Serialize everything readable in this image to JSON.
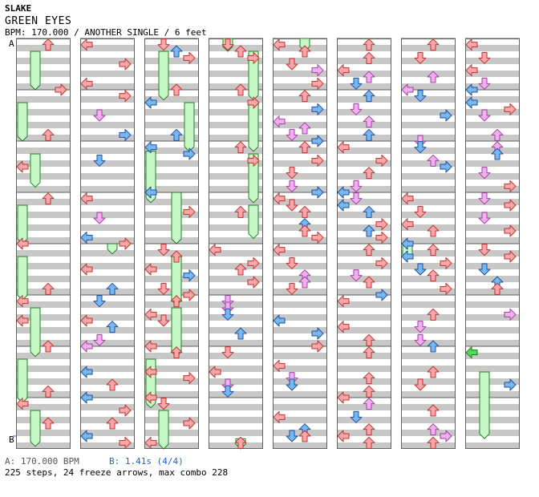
{
  "header": {
    "artist": "SLAKE",
    "title": "GREEN EYES",
    "info": "BPM: 170.000 / ANOTHER SINGLE / 6 feet"
  },
  "markers": {
    "start": "A",
    "end": "B"
  },
  "footer": {
    "a_label": "A: 170.000 BPM",
    "b_label": "B: 1.41s (4/4)",
    "steps": "225 steps, 24 freeze arrows, max combo 228"
  },
  "colors": {
    "quarter": "#f8a8a8",
    "eighth": "#78b8f0",
    "sixteenth": "#f0b0f0",
    "other": "#58d858",
    "freeze": "#c8f8c8"
  },
  "chart": {
    "measures_per_column": 8,
    "beat_lines": 4,
    "lanes": [
      "left",
      "down",
      "up",
      "right"
    ],
    "notes": [
      [
        0,
        0,
        0.12,
        2,
        "q"
      ],
      [
        0,
        0,
        1.0,
        3,
        "q"
      ],
      [
        0,
        0,
        1.88,
        2,
        "q"
      ],
      [
        0,
        0,
        2.5,
        0,
        "q"
      ],
      [
        0,
        0,
        3.12,
        2,
        "q"
      ],
      [
        0,
        0,
        4.0,
        0,
        "q"
      ],
      [
        0,
        0,
        4.88,
        2,
        "q"
      ],
      [
        0,
        0,
        5.12,
        0,
        "q"
      ],
      [
        0,
        0,
        5.5,
        0,
        "q"
      ],
      [
        0,
        0,
        6.0,
        2,
        "q"
      ],
      [
        0,
        0,
        6.88,
        2,
        "q"
      ],
      [
        0,
        0,
        7.12,
        0,
        "q"
      ],
      [
        0,
        0,
        7.5,
        2,
        "q"
      ],
      [
        1,
        0,
        0.12,
        0,
        "q"
      ],
      [
        1,
        0,
        0.5,
        3,
        "q"
      ],
      [
        1,
        0,
        0.88,
        0,
        "q"
      ],
      [
        1,
        0,
        1.12,
        3,
        "q"
      ],
      [
        1,
        0,
        1.5,
        1,
        "s"
      ],
      [
        1,
        0,
        1.88,
        3,
        "e"
      ],
      [
        1,
        0,
        2.38,
        1,
        "e"
      ],
      [
        1,
        0,
        3.12,
        0,
        "q"
      ],
      [
        1,
        0,
        3.5,
        1,
        "s"
      ],
      [
        1,
        0,
        3.88,
        0,
        "e"
      ],
      [
        1,
        0,
        4.0,
        3,
        "q"
      ],
      [
        1,
        0,
        4.5,
        0,
        "q"
      ],
      [
        1,
        0,
        5.5,
        0,
        "q"
      ],
      [
        1,
        0,
        5.88,
        1,
        "s"
      ],
      [
        1,
        0,
        5.12,
        1,
        "e"
      ],
      [
        1,
        0,
        6.0,
        0,
        "s"
      ],
      [
        1,
        0,
        6.5,
        0,
        "e"
      ],
      [
        1,
        0,
        6.75,
        2,
        "q"
      ],
      [
        1,
        0,
        7.0,
        0,
        "e"
      ],
      [
        1,
        0,
        7.25,
        3,
        "q"
      ],
      [
        1,
        0,
        7.5,
        2,
        "q"
      ],
      [
        1,
        0,
        7.75,
        0,
        "e"
      ],
      [
        1,
        0,
        7.88,
        3,
        "q"
      ],
      [
        1,
        0,
        4.88,
        2,
        "e"
      ],
      [
        1,
        0,
        5.62,
        2,
        "e"
      ],
      [
        2,
        0,
        0.12,
        1,
        "q"
      ],
      [
        2,
        0,
        0.25,
        2,
        "e"
      ],
      [
        2,
        0,
        0.38,
        3,
        "q"
      ],
      [
        2,
        0,
        1.0,
        2,
        "q"
      ],
      [
        2,
        0,
        1.25,
        0,
        "e"
      ],
      [
        2,
        0,
        1.88,
        2,
        "e"
      ],
      [
        2,
        0,
        2.12,
        0,
        "e"
      ],
      [
        2,
        0,
        2.25,
        3,
        "e"
      ],
      [
        2,
        0,
        3.0,
        0,
        "e"
      ],
      [
        2,
        0,
        3.38,
        3,
        "q"
      ],
      [
        2,
        0,
        4.12,
        1,
        "q"
      ],
      [
        2,
        0,
        4.25,
        2,
        "q"
      ],
      [
        2,
        0,
        4.5,
        0,
        "q"
      ],
      [
        2,
        0,
        4.62,
        3,
        "e"
      ],
      [
        2,
        0,
        4.88,
        1,
        "q"
      ],
      [
        2,
        0,
        5.0,
        3,
        "q"
      ],
      [
        2,
        0,
        5.12,
        2,
        "q"
      ],
      [
        2,
        0,
        5.38,
        0,
        "q"
      ],
      [
        2,
        0,
        5.5,
        1,
        "q"
      ],
      [
        2,
        0,
        6.0,
        0,
        "q"
      ],
      [
        2,
        0,
        6.12,
        2,
        "q"
      ],
      [
        2,
        0,
        6.5,
        0,
        "q"
      ],
      [
        2,
        0,
        6.62,
        3,
        "q"
      ],
      [
        2,
        0,
        7.0,
        0,
        "q"
      ],
      [
        2,
        0,
        7.12,
        1,
        "q"
      ],
      [
        2,
        0,
        7.5,
        3,
        "q"
      ],
      [
        2,
        0,
        7.88,
        0,
        "q"
      ],
      [
        3,
        0,
        0.12,
        1,
        "q"
      ],
      [
        3,
        0,
        0.25,
        2,
        "q"
      ],
      [
        3,
        0,
        0.38,
        3,
        "q"
      ],
      [
        3,
        0,
        1.0,
        2,
        "q"
      ],
      [
        3,
        0,
        1.25,
        3,
        "q"
      ],
      [
        3,
        0,
        2.12,
        2,
        "q"
      ],
      [
        3,
        0,
        2.38,
        3,
        "q"
      ],
      [
        3,
        0,
        3.38,
        2,
        "q"
      ],
      [
        3,
        0,
        4.12,
        0,
        "q"
      ],
      [
        3,
        0,
        4.38,
        3,
        "q"
      ],
      [
        3,
        0,
        4.5,
        2,
        "q"
      ],
      [
        3,
        0,
        4.75,
        3,
        "q"
      ],
      [
        3,
        0,
        5.12,
        1,
        "s"
      ],
      [
        3,
        0,
        5.25,
        1,
        "s"
      ],
      [
        3,
        0,
        5.38,
        1,
        "e"
      ],
      [
        3,
        0,
        5.75,
        2,
        "e"
      ],
      [
        3,
        0,
        6.12,
        1,
        "q"
      ],
      [
        3,
        0,
        6.5,
        0,
        "q"
      ],
      [
        3,
        0,
        6.75,
        1,
        "s"
      ],
      [
        3,
        0,
        6.88,
        1,
        "e"
      ],
      [
        3,
        0,
        7.88,
        2,
        "q"
      ],
      [
        4,
        0,
        0.12,
        0,
        "q"
      ],
      [
        4,
        0,
        0.25,
        2,
        "q"
      ],
      [
        4,
        0,
        0.5,
        1,
        "q"
      ],
      [
        4,
        0,
        0.62,
        3,
        "s"
      ],
      [
        4,
        0,
        0.88,
        3,
        "q"
      ],
      [
        4,
        0,
        1.12,
        2,
        "q"
      ],
      [
        4,
        0,
        1.38,
        3,
        "e"
      ],
      [
        4,
        0,
        1.62,
        0,
        "s"
      ],
      [
        4,
        0,
        1.75,
        2,
        "s"
      ],
      [
        4,
        0,
        1.88,
        1,
        "s"
      ],
      [
        4,
        0,
        2.0,
        3,
        "e"
      ],
      [
        4,
        0,
        2.12,
        2,
        "q"
      ],
      [
        4,
        0,
        2.38,
        3,
        "q"
      ],
      [
        4,
        0,
        2.62,
        1,
        "q"
      ],
      [
        4,
        0,
        2.88,
        1,
        "s"
      ],
      [
        4,
        0,
        3.0,
        3,
        "e"
      ],
      [
        4,
        0,
        3.12,
        0,
        "q"
      ],
      [
        4,
        0,
        3.25,
        1,
        "q"
      ],
      [
        4,
        0,
        3.38,
        2,
        "q"
      ],
      [
        4,
        0,
        3.62,
        2,
        "e"
      ],
      [
        4,
        0,
        3.75,
        2,
        "q"
      ],
      [
        4,
        0,
        3.88,
        3,
        "q"
      ],
      [
        4,
        0,
        4.12,
        0,
        "q"
      ],
      [
        4,
        0,
        4.38,
        1,
        "q"
      ],
      [
        4,
        0,
        4.62,
        2,
        "s"
      ],
      [
        4,
        0,
        4.75,
        2,
        "s"
      ],
      [
        4,
        0,
        4.88,
        1,
        "q"
      ],
      [
        4,
        0,
        5.5,
        0,
        "e"
      ],
      [
        4,
        0,
        5.75,
        3,
        "e"
      ],
      [
        4,
        0,
        6.0,
        3,
        "q"
      ],
      [
        4,
        0,
        6.38,
        0,
        "q"
      ],
      [
        4,
        0,
        6.62,
        1,
        "s"
      ],
      [
        4,
        0,
        6.75,
        1,
        "e"
      ],
      [
        4,
        0,
        7.38,
        0,
        "q"
      ],
      [
        4,
        0,
        7.75,
        1,
        "e"
      ],
      [
        4,
        0,
        7.62,
        2,
        "e"
      ],
      [
        4,
        0,
        7.75,
        2,
        "q"
      ],
      [
        5,
        0,
        0.12,
        2,
        "q"
      ],
      [
        5,
        0,
        0.38,
        2,
        "q"
      ],
      [
        5,
        0,
        0.62,
        0,
        "q"
      ],
      [
        5,
        0,
        0.75,
        2,
        "s"
      ],
      [
        5,
        0,
        0.88,
        1,
        "e"
      ],
      [
        5,
        0,
        1.12,
        2,
        "e"
      ],
      [
        5,
        0,
        1.38,
        1,
        "s"
      ],
      [
        5,
        0,
        1.62,
        2,
        "s"
      ],
      [
        5,
        0,
        1.88,
        2,
        "e"
      ],
      [
        5,
        0,
        2.12,
        0,
        "q"
      ],
      [
        5,
        0,
        2.38,
        3,
        "q"
      ],
      [
        5,
        0,
        2.62,
        2,
        "q"
      ],
      [
        5,
        0,
        2.88,
        1,
        "s"
      ],
      [
        5,
        0,
        3.0,
        0,
        "e"
      ],
      [
        5,
        0,
        3.12,
        1,
        "s"
      ],
      [
        5,
        0,
        3.25,
        0,
        "e"
      ],
      [
        5,
        0,
        3.38,
        2,
        "e"
      ],
      [
        5,
        0,
        3.62,
        3,
        "q"
      ],
      [
        5,
        0,
        3.75,
        2,
        "e"
      ],
      [
        5,
        0,
        3.88,
        3,
        "q"
      ],
      [
        5,
        0,
        4.12,
        2,
        "q"
      ],
      [
        5,
        0,
        4.38,
        3,
        "q"
      ],
      [
        5,
        0,
        4.62,
        1,
        "s"
      ],
      [
        5,
        0,
        4.75,
        2,
        "q"
      ],
      [
        5,
        0,
        5.0,
        3,
        "e"
      ],
      [
        5,
        0,
        5.12,
        0,
        "q"
      ],
      [
        5,
        0,
        5.62,
        0,
        "q"
      ],
      [
        5,
        0,
        5.88,
        2,
        "q"
      ],
      [
        5,
        0,
        6.12,
        2,
        "q"
      ],
      [
        5,
        0,
        6.62,
        2,
        "q"
      ],
      [
        5,
        0,
        6.88,
        2,
        "q"
      ],
      [
        5,
        0,
        7.0,
        0,
        "q"
      ],
      [
        5,
        0,
        7.12,
        2,
        "s"
      ],
      [
        5,
        0,
        7.38,
        1,
        "e"
      ],
      [
        5,
        0,
        7.62,
        2,
        "q"
      ],
      [
        5,
        0,
        7.75,
        0,
        "q"
      ],
      [
        5,
        0,
        7.88,
        2,
        "q"
      ],
      [
        6,
        0,
        0.12,
        2,
        "q"
      ],
      [
        6,
        0,
        0.38,
        1,
        "q"
      ],
      [
        6,
        0,
        0.75,
        2,
        "s"
      ],
      [
        6,
        0,
        1.0,
        0,
        "s"
      ],
      [
        6,
        0,
        1.12,
        1,
        "e"
      ],
      [
        6,
        0,
        1.5,
        3,
        "e"
      ],
      [
        6,
        0,
        2.0,
        1,
        "s"
      ],
      [
        6,
        0,
        2.12,
        1,
        "e"
      ],
      [
        6,
        0,
        2.38,
        2,
        "s"
      ],
      [
        6,
        0,
        2.5,
        3,
        "e"
      ],
      [
        6,
        0,
        3.12,
        0,
        "q"
      ],
      [
        6,
        0,
        3.38,
        1,
        "q"
      ],
      [
        6,
        0,
        3.62,
        0,
        "q"
      ],
      [
        6,
        0,
        3.75,
        2,
        "q"
      ],
      [
        6,
        0,
        4.0,
        0,
        "e"
      ],
      [
        6,
        0,
        4.12,
        2,
        "q"
      ],
      [
        6,
        0,
        4.25,
        0,
        "e"
      ],
      [
        6,
        0,
        4.38,
        3,
        "q"
      ],
      [
        6,
        0,
        4.5,
        1,
        "e"
      ],
      [
        6,
        0,
        4.62,
        2,
        "q"
      ],
      [
        6,
        0,
        4.88,
        3,
        "q"
      ],
      [
        6,
        0,
        5.38,
        2,
        "q"
      ],
      [
        6,
        0,
        5.62,
        1,
        "s"
      ],
      [
        6,
        0,
        5.88,
        1,
        "s"
      ],
      [
        6,
        0,
        6.0,
        2,
        "e"
      ],
      [
        6,
        0,
        6.5,
        2,
        "q"
      ],
      [
        6,
        0,
        6.75,
        1,
        "q"
      ],
      [
        6,
        0,
        7.25,
        2,
        "q"
      ],
      [
        6,
        0,
        7.62,
        2,
        "s"
      ],
      [
        6,
        0,
        7.75,
        3,
        "s"
      ],
      [
        6,
        0,
        7.88,
        2,
        "q"
      ],
      [
        7,
        0,
        0.12,
        0,
        "q"
      ],
      [
        7,
        0,
        0.38,
        1,
        "q"
      ],
      [
        7,
        0,
        0.62,
        0,
        "q"
      ],
      [
        7,
        0,
        0.88,
        1,
        "s"
      ],
      [
        7,
        0,
        1.0,
        0,
        "e"
      ],
      [
        7,
        0,
        1.25,
        0,
        "e"
      ],
      [
        7,
        0,
        1.38,
        3,
        "q"
      ],
      [
        7,
        0,
        1.5,
        1,
        "s"
      ],
      [
        7,
        0,
        1.88,
        2,
        "s"
      ],
      [
        7,
        0,
        2.12,
        2,
        "s"
      ],
      [
        7,
        0,
        2.25,
        2,
        "e"
      ],
      [
        7,
        0,
        2.62,
        1,
        "s"
      ],
      [
        7,
        0,
        2.88,
        3,
        "q"
      ],
      [
        7,
        0,
        3.12,
        1,
        "s"
      ],
      [
        7,
        0,
        3.25,
        3,
        "q"
      ],
      [
        7,
        0,
        3.5,
        1,
        "s"
      ],
      [
        7,
        0,
        3.75,
        3,
        "q"
      ],
      [
        7,
        0,
        4.12,
        1,
        "q"
      ],
      [
        7,
        0,
        4.25,
        3,
        "q"
      ],
      [
        7,
        0,
        4.5,
        1,
        "e"
      ],
      [
        7,
        0,
        4.75,
        2,
        "e"
      ],
      [
        7,
        0,
        4.88,
        2,
        "q"
      ],
      [
        7,
        0,
        5.38,
        3,
        "s"
      ],
      [
        7,
        0,
        6.12,
        0,
        "o"
      ],
      [
        7,
        0,
        6.75,
        3,
        "e"
      ]
    ],
    "freezes": [
      [
        0,
        0,
        0.25,
        1.0,
        1
      ],
      [
        0,
        0,
        1.25,
        2.0,
        0
      ],
      [
        0,
        0,
        2.25,
        2.9,
        1
      ],
      [
        0,
        0,
        3.25,
        4.0,
        0
      ],
      [
        0,
        0,
        4.25,
        5.1,
        0
      ],
      [
        0,
        0,
        5.25,
        6.2,
        1
      ],
      [
        0,
        0,
        6.25,
        7.1,
        0
      ],
      [
        0,
        0,
        7.25,
        7.95,
        1
      ],
      [
        1,
        0,
        4.0,
        4.2,
        2
      ],
      [
        2,
        0,
        0.25,
        1.2,
        1
      ],
      [
        2,
        0,
        1.25,
        2.2,
        3
      ],
      [
        2,
        0,
        2.2,
        3.2,
        0
      ],
      [
        2,
        0,
        3.0,
        4.0,
        2
      ],
      [
        2,
        0,
        4.25,
        5.2,
        2
      ],
      [
        2,
        0,
        5.25,
        6.2,
        2
      ],
      [
        2,
        0,
        6.25,
        7.2,
        0
      ],
      [
        2,
        0,
        7.25,
        8.0,
        1
      ],
      [
        3,
        0,
        0.0,
        0.25,
        1
      ],
      [
        3,
        0,
        0.25,
        1.2,
        3
      ],
      [
        3,
        0,
        1.25,
        2.2,
        3
      ],
      [
        3,
        0,
        2.25,
        3.2,
        3
      ],
      [
        3,
        0,
        3.25,
        3.9,
        3
      ],
      [
        3,
        0,
        7.8,
        8.0,
        2
      ],
      [
        4,
        0,
        0.0,
        0.25,
        2
      ],
      [
        6,
        0,
        4.0,
        4.3,
        0
      ],
      [
        7,
        0,
        6.5,
        7.8,
        1
      ]
    ]
  }
}
